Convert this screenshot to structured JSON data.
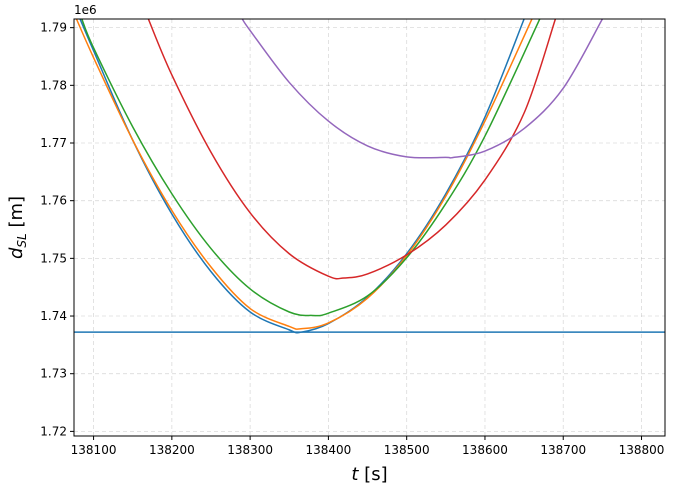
{
  "chart_data": {
    "type": "line",
    "xlabel_var": "t",
    "xlabel_unit": " [s]",
    "ylabel_var": "d",
    "ylabel_sub": "SL",
    "ylabel_unit": " [m]",
    "y_offset_label": "1e6",
    "xlim": [
      138075,
      138830
    ],
    "ylim": [
      1.7192,
      1.7915
    ],
    "x_ticks": [
      138100,
      138200,
      138300,
      138400,
      138500,
      138600,
      138700,
      138800
    ],
    "y_ticks": [
      1.72,
      1.73,
      1.74,
      1.75,
      1.76,
      1.77,
      1.78,
      1.79
    ],
    "grid": true,
    "horizontal_line": {
      "y": 1.7372,
      "color": "#1f77b4"
    },
    "series": [
      {
        "color": "#1f77b4",
        "x": [
          138075,
          138100,
          138150,
          138200,
          138250,
          138300,
          138350,
          138365,
          138400,
          138450,
          138500,
          138550,
          138600,
          138650
        ],
        "y": [
          1.794,
          1.786,
          1.7705,
          1.7577,
          1.7477,
          1.7407,
          1.7376,
          1.7372,
          1.7387,
          1.7433,
          1.7508,
          1.7612,
          1.7745,
          1.7915
        ]
      },
      {
        "color": "#ff7f0e",
        "x": [
          138075,
          138100,
          138150,
          138200,
          138250,
          138300,
          138350,
          138365,
          138400,
          138450,
          138500,
          138550,
          138600,
          138660
        ],
        "y": [
          1.7925,
          1.7848,
          1.7705,
          1.7583,
          1.7485,
          1.7413,
          1.7382,
          1.7378,
          1.7388,
          1.7431,
          1.7505,
          1.7608,
          1.7738,
          1.7915
        ]
      },
      {
        "color": "#2ca02c",
        "x": [
          138085,
          138100,
          138150,
          138200,
          138250,
          138300,
          138350,
          138380,
          138400,
          138450,
          138500,
          138550,
          138600,
          138670
        ],
        "y": [
          1.7915,
          1.7865,
          1.7728,
          1.7612,
          1.7517,
          1.7447,
          1.7407,
          1.7401,
          1.7405,
          1.7435,
          1.7501,
          1.7595,
          1.7712,
          1.7915
        ]
      },
      {
        "color": "#d62728",
        "x": [
          138170,
          138200,
          138250,
          138300,
          138350,
          138400,
          138420,
          138450,
          138500,
          138550,
          138600,
          138650,
          138690
        ],
        "y": [
          1.7915,
          1.7818,
          1.7684,
          1.7579,
          1.7508,
          1.7469,
          1.7466,
          1.7473,
          1.7506,
          1.7558,
          1.7636,
          1.7752,
          1.7915
        ]
      },
      {
        "color": "#9467bd",
        "x": [
          138290,
          138300,
          138350,
          138400,
          138450,
          138500,
          138550,
          138560,
          138600,
          138650,
          138700,
          138750
        ],
        "y": [
          1.7915,
          1.7895,
          1.7805,
          1.7738,
          1.7695,
          1.7676,
          1.7675,
          1.7675,
          1.7686,
          1.7725,
          1.7795,
          1.7915
        ]
      }
    ]
  }
}
